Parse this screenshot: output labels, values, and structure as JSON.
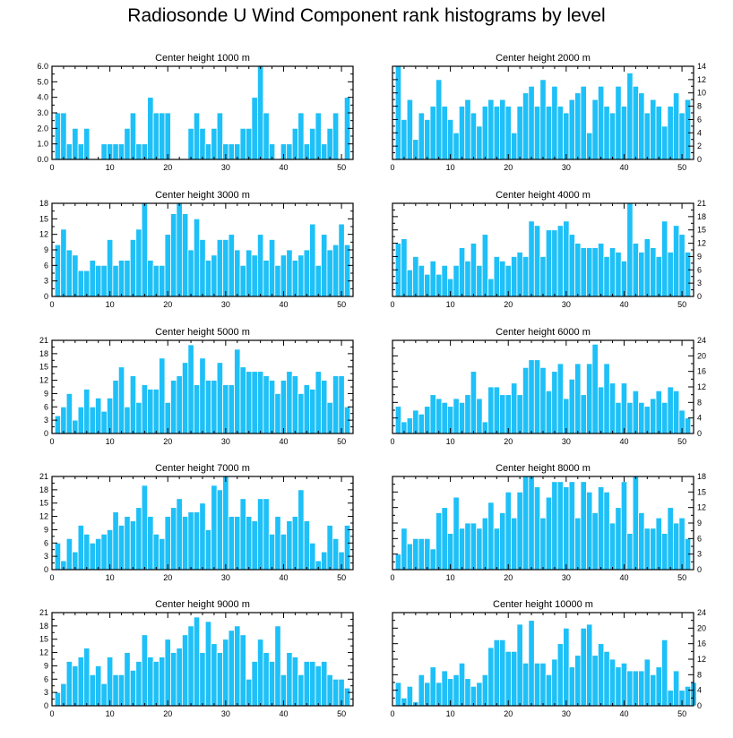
{
  "title": "Radiosonde U Wind Component rank histograms by level",
  "colors": {
    "bar": "#1ec0f8",
    "bar_edge": "#ffffff",
    "axis": "#000000"
  },
  "chart_data": [
    {
      "type": "bar",
      "title": "Center height 1000 m",
      "xlabel": "",
      "ylabel": "",
      "xlim": [
        0,
        52
      ],
      "ylim": [
        0,
        6
      ],
      "xticks": [
        0,
        10,
        20,
        30,
        40,
        50
      ],
      "yticks": [
        0,
        1,
        2,
        3,
        4,
        5,
        6
      ],
      "ytick_labels": [
        "0.0",
        "1.0",
        "2.0",
        "3.0",
        "4.0",
        "5.0",
        "6.0"
      ],
      "yaxis_side": "left",
      "values": [
        3,
        3,
        1,
        2,
        1,
        2,
        0,
        0,
        1,
        1,
        1,
        1,
        2,
        3,
        1,
        1,
        4,
        3,
        3,
        3,
        0,
        0,
        0,
        2,
        3,
        2,
        1,
        2,
        3,
        1,
        1,
        1,
        2,
        2,
        4,
        6,
        3,
        1,
        0,
        1,
        1,
        2,
        3,
        1,
        2,
        3,
        1,
        2,
        3,
        0,
        4
      ]
    },
    {
      "type": "bar",
      "title": "Center height 2000 m",
      "xlabel": "",
      "ylabel": "",
      "xlim": [
        0,
        52
      ],
      "ylim": [
        0,
        14
      ],
      "xticks": [
        0,
        10,
        20,
        30,
        40,
        50
      ],
      "yticks": [
        0,
        2,
        4,
        6,
        8,
        10,
        12,
        14
      ],
      "ytick_labels": [
        "0",
        "2",
        "4",
        "6",
        "8",
        "10",
        "12",
        "14"
      ],
      "yaxis_side": "right",
      "values": [
        14,
        6,
        9,
        3,
        7,
        6,
        8,
        12,
        8,
        6,
        4,
        8,
        9,
        7,
        5,
        8,
        9,
        8,
        9,
        8,
        4,
        8,
        10,
        11,
        8,
        12,
        8,
        11,
        8,
        7,
        9,
        10,
        11,
        4,
        9,
        11,
        8,
        7,
        11,
        8,
        13,
        11,
        10,
        7,
        9,
        8,
        5,
        8,
        10,
        7,
        9
      ]
    },
    {
      "type": "bar",
      "title": "Center height 3000 m",
      "xlabel": "",
      "ylabel": "",
      "xlim": [
        0,
        52
      ],
      "ylim": [
        0,
        18
      ],
      "xticks": [
        0,
        10,
        20,
        30,
        40,
        50
      ],
      "yticks": [
        0,
        3,
        6,
        9,
        12,
        15,
        18
      ],
      "ytick_labels": [
        "0",
        "3",
        "6",
        "9",
        "12",
        "15",
        "18"
      ],
      "yaxis_side": "left",
      "values": [
        10,
        13,
        9,
        8,
        5,
        5,
        7,
        6,
        6,
        11,
        6,
        7,
        7,
        11,
        13,
        18,
        7,
        6,
        6,
        12,
        16,
        18,
        16,
        9,
        15,
        11,
        7,
        8,
        11,
        11,
        12,
        9,
        6,
        9,
        8,
        12,
        7,
        11,
        6,
        8,
        9,
        7,
        8,
        9,
        14,
        6,
        12,
        9,
        10,
        14,
        10
      ]
    },
    {
      "type": "bar",
      "title": "Center height 4000 m",
      "xlabel": "",
      "ylabel": "",
      "xlim": [
        0,
        52
      ],
      "ylim": [
        0,
        21
      ],
      "xticks": [
        0,
        10,
        20,
        30,
        40,
        50
      ],
      "yticks": [
        0,
        3,
        6,
        9,
        12,
        15,
        18,
        21
      ],
      "ytick_labels": [
        "0",
        "3",
        "6",
        "9",
        "12",
        "15",
        "18",
        "21"
      ],
      "yaxis_side": "right",
      "values": [
        12,
        13,
        6,
        9,
        7,
        5,
        8,
        5,
        7,
        4,
        7,
        11,
        8,
        12,
        7,
        14,
        4,
        9,
        8,
        7,
        9,
        10,
        9,
        17,
        16,
        9,
        15,
        15,
        16,
        17,
        14,
        12,
        11,
        11,
        11,
        12,
        9,
        11,
        10,
        8,
        21,
        12,
        10,
        13,
        11,
        9,
        17,
        10,
        16,
        14,
        10
      ]
    },
    {
      "type": "bar",
      "title": "Center height 5000 m",
      "xlabel": "",
      "ylabel": "",
      "xlim": [
        0,
        52
      ],
      "ylim": [
        0,
        21
      ],
      "xticks": [
        0,
        10,
        20,
        30,
        40,
        50
      ],
      "yticks": [
        0,
        3,
        6,
        9,
        12,
        15,
        18,
        21
      ],
      "ytick_labels": [
        "0",
        "3",
        "6",
        "9",
        "12",
        "15",
        "18",
        "21"
      ],
      "yaxis_side": "left",
      "values": [
        4,
        6,
        9,
        3,
        6,
        10,
        6,
        8,
        5,
        8,
        12,
        15,
        6,
        13,
        7,
        11,
        10,
        10,
        17,
        7,
        12,
        13,
        16,
        20,
        11,
        17,
        12,
        12,
        16,
        11,
        11,
        19,
        15,
        14,
        14,
        14,
        13,
        12,
        9,
        12,
        14,
        13,
        9,
        11,
        10,
        14,
        12,
        7,
        13,
        13,
        6
      ]
    },
    {
      "type": "bar",
      "title": "Center height 6000 m",
      "xlabel": "",
      "ylabel": "",
      "xlim": [
        0,
        52
      ],
      "ylim": [
        0,
        24
      ],
      "xticks": [
        0,
        10,
        20,
        30,
        40,
        50
      ],
      "yticks": [
        0,
        4,
        8,
        12,
        16,
        20,
        24
      ],
      "ytick_labels": [
        "0",
        "4",
        "8",
        "12",
        "16",
        "20",
        "24"
      ],
      "yaxis_side": "right",
      "values": [
        7,
        3,
        4,
        6,
        5,
        7,
        10,
        9,
        8,
        7,
        9,
        8,
        10,
        16,
        9,
        3,
        12,
        12,
        10,
        10,
        13,
        10,
        17,
        19,
        19,
        17,
        11,
        16,
        18,
        9,
        14,
        18,
        10,
        18,
        23,
        12,
        18,
        13,
        8,
        13,
        8,
        11,
        8,
        7,
        9,
        11,
        8,
        12,
        11,
        6,
        4
      ]
    },
    {
      "type": "bar",
      "title": "Center height 7000 m",
      "xlabel": "",
      "ylabel": "",
      "xlim": [
        0,
        52
      ],
      "ylim": [
        0,
        21
      ],
      "xticks": [
        0,
        10,
        20,
        30,
        40,
        50
      ],
      "yticks": [
        0,
        3,
        6,
        9,
        12,
        15,
        18,
        21
      ],
      "ytick_labels": [
        "0",
        "3",
        "6",
        "9",
        "12",
        "15",
        "18",
        "21"
      ],
      "yaxis_side": "left",
      "values": [
        6,
        2,
        7,
        4,
        10,
        8,
        6,
        7,
        8,
        9,
        13,
        10,
        12,
        11,
        14,
        19,
        12,
        8,
        7,
        12,
        14,
        16,
        12,
        13,
        13,
        15,
        9,
        19,
        18,
        21,
        12,
        12,
        16,
        12,
        11,
        16,
        16,
        8,
        12,
        8,
        11,
        12,
        18,
        11,
        6,
        2,
        4,
        10,
        7,
        4,
        10
      ]
    },
    {
      "type": "bar",
      "title": "Center height 8000 m",
      "xlabel": "",
      "ylabel": "",
      "xlim": [
        0,
        52
      ],
      "ylim": [
        0,
        18
      ],
      "xticks": [
        0,
        10,
        20,
        30,
        40,
        50
      ],
      "yticks": [
        0,
        3,
        6,
        9,
        12,
        15,
        18
      ],
      "ytick_labels": [
        "0",
        "3",
        "6",
        "9",
        "12",
        "15",
        "18"
      ],
      "yaxis_side": "right",
      "values": [
        3,
        8,
        5,
        6,
        6,
        6,
        4,
        11,
        12,
        7,
        14,
        8,
        9,
        9,
        8,
        10,
        13,
        8,
        11,
        15,
        10,
        15,
        18,
        18,
        16,
        10,
        14,
        17,
        17,
        16,
        17,
        10,
        17,
        15,
        11,
        16,
        15,
        9,
        12,
        17,
        7,
        18,
        11,
        8,
        8,
        10,
        7,
        12,
        9,
        10,
        6
      ]
    },
    {
      "type": "bar",
      "title": "Center height 9000 m",
      "xlabel": "",
      "ylabel": "",
      "xlim": [
        0,
        52
      ],
      "ylim": [
        0,
        21
      ],
      "xticks": [
        0,
        10,
        20,
        30,
        40,
        50
      ],
      "yticks": [
        0,
        3,
        6,
        9,
        12,
        15,
        18,
        21
      ],
      "ytick_labels": [
        "0",
        "3",
        "6",
        "9",
        "12",
        "15",
        "18",
        "21"
      ],
      "yaxis_side": "left",
      "values": [
        3,
        5,
        10,
        9,
        11,
        13,
        7,
        9,
        5,
        11,
        7,
        7,
        12,
        8,
        10,
        16,
        11,
        10,
        11,
        15,
        12,
        13,
        16,
        18,
        20,
        12,
        19,
        14,
        12,
        15,
        17,
        18,
        16,
        6,
        10,
        15,
        12,
        10,
        18,
        7,
        12,
        11,
        7,
        10,
        10,
        9,
        10,
        7,
        6,
        6,
        4
      ]
    },
    {
      "type": "bar",
      "title": "Center height 10000 m",
      "xlabel": "",
      "ylabel": "",
      "xlim": [
        0,
        52
      ],
      "ylim": [
        0,
        24
      ],
      "xticks": [
        0,
        10,
        20,
        30,
        40,
        50
      ],
      "yticks": [
        0,
        4,
        8,
        12,
        16,
        20,
        24
      ],
      "ytick_labels": [
        "0",
        "4",
        "8",
        "12",
        "16",
        "20",
        "24"
      ],
      "yaxis_side": "right",
      "values": [
        6,
        2,
        5,
        1,
        8,
        6,
        10,
        6,
        9,
        7,
        8,
        11,
        7,
        5,
        6,
        8,
        15,
        17,
        17,
        14,
        14,
        21,
        11,
        22,
        11,
        11,
        8,
        12,
        16,
        20,
        10,
        13,
        20,
        21,
        13,
        16,
        14,
        12,
        10,
        11,
        9,
        9,
        9,
        12,
        8,
        10,
        17,
        4,
        9,
        4,
        5,
        6
      ]
    }
  ]
}
